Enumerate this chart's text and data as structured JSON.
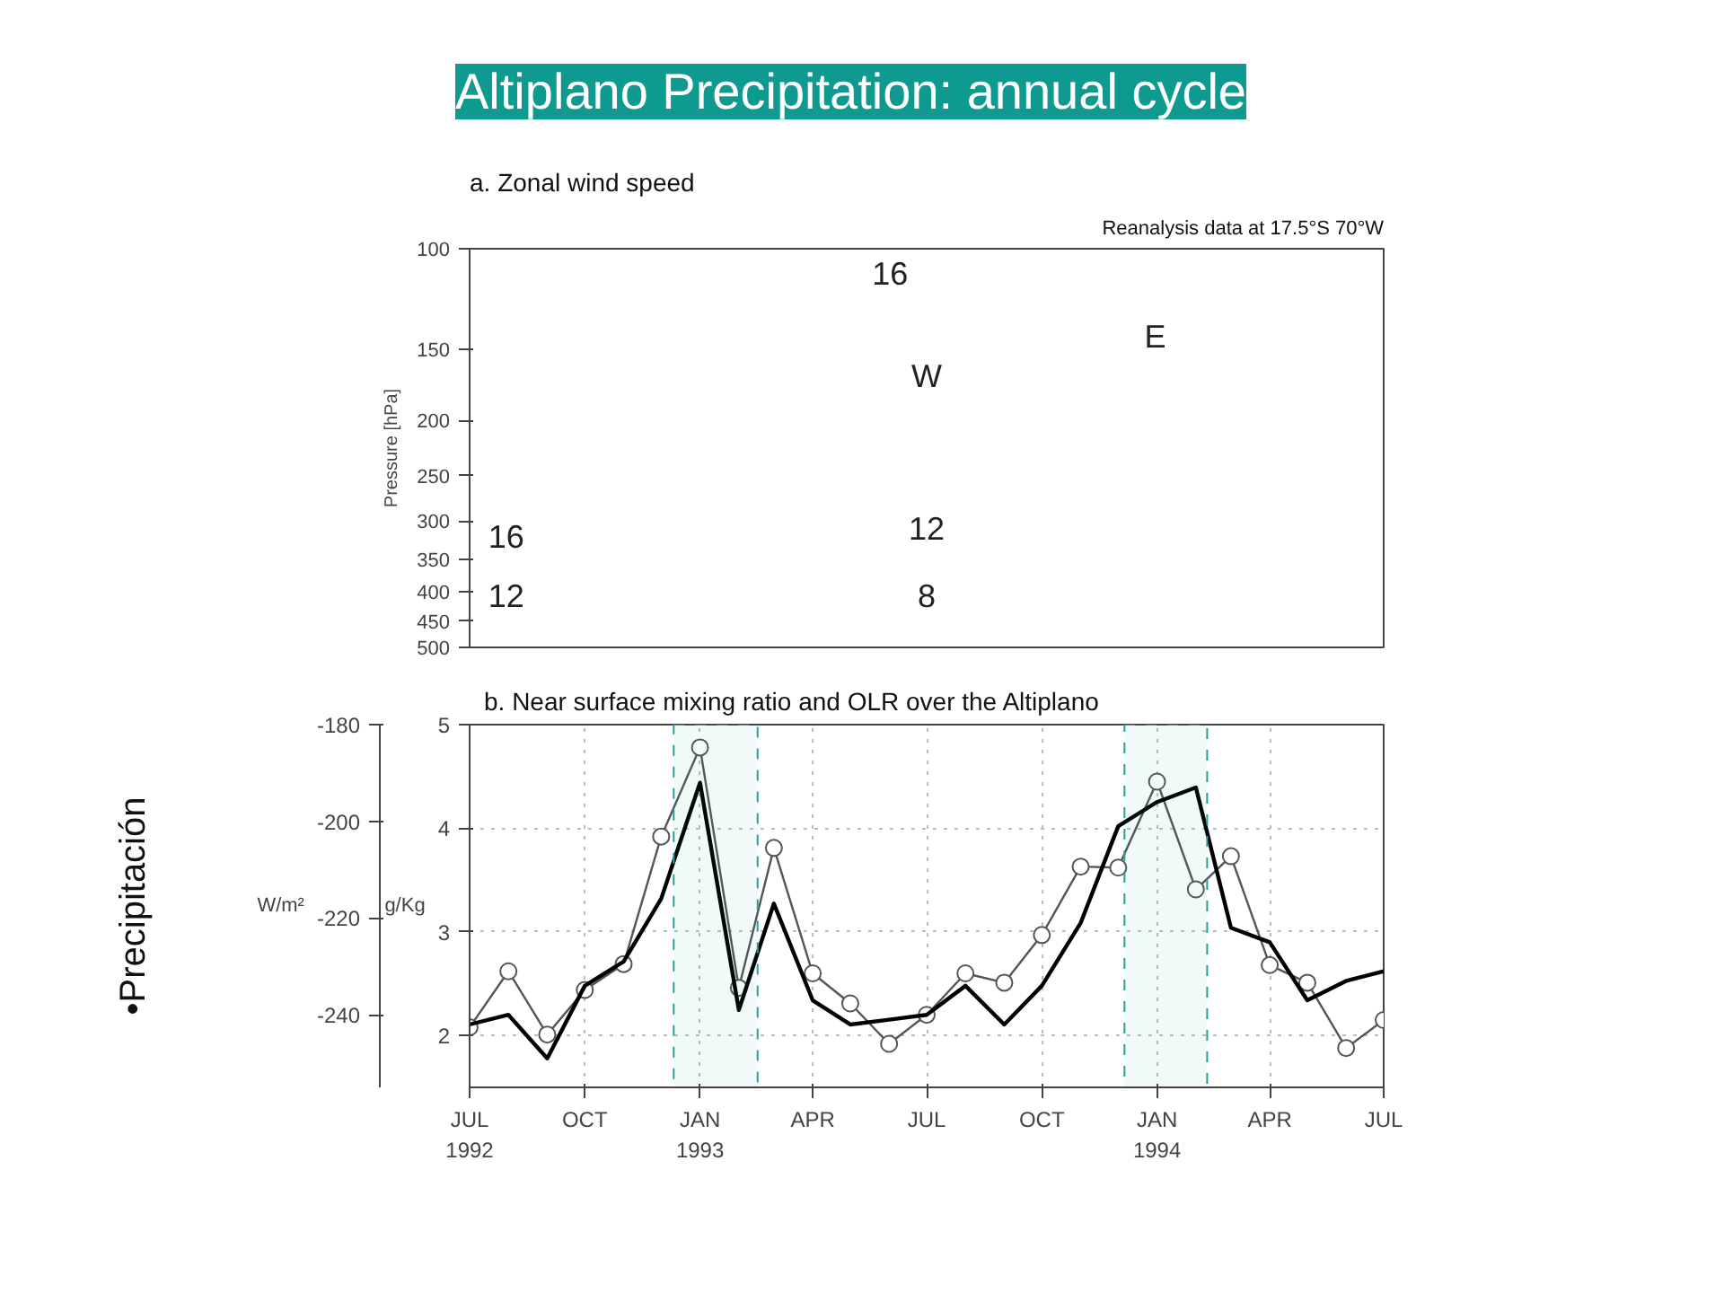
{
  "chart_data": [
    {
      "type": "line",
      "title": "Altiplano Precipitation: annual cycle",
      "subtitle": "a. Zonal wind speed",
      "ylabel": "Pressure [hPa]",
      "xlim": [
        "1992-07",
        "1994-07"
      ],
      "ylim": [
        500,
        100
      ],
      "log": "y",
      "yticks": [
        100,
        150,
        200,
        250,
        300,
        350,
        400,
        450,
        500
      ],
      "tick_labels": "y",
      "annotations": [
        "Reanalysis data at 17.5°S 70°W",
        "16",
        "W",
        "12",
        "8",
        "E",
        "16",
        "12"
      ]
    },
    {
      "type": "line",
      "title": "b. Near surface mixing ratio and OLR over the Altiplano",
      "ylabel": "g/Kg",
      "y2label": "W/m²",
      "x": [
        "1992-07",
        "1992-08",
        "1992-09",
        "1992-10",
        "1992-11",
        "1992-12",
        "1993-01",
        "1993-02",
        "1993-03",
        "1993-04",
        "1993-05",
        "1993-06",
        "1993-07",
        "1993-08",
        "1993-09",
        "1993-10",
        "1993-11",
        "1993-12",
        "1994-01",
        "1994-02",
        "1994-03",
        "1994-04",
        "1994-05",
        "1994-06",
        "1994-07"
      ],
      "series": [
        {
          "color": "#555555",
          "marker": "circle",
          "values": [
            2.08,
            2.62,
            2.01,
            2.44,
            2.69,
            3.92,
            4.78,
            2.46,
            3.81,
            2.6,
            2.31,
            1.92,
            2.2,
            2.6,
            2.51,
            2.97,
            3.63,
            3.62,
            4.45,
            3.41,
            3.73,
            2.68,
            2.51,
            1.88,
            2.15
          ]
        },
        {
          "color": "#000000",
          "axis": "y2",
          "values": [
            -242,
            -240,
            -249,
            -234,
            -229,
            -216,
            -192,
            -239,
            -217,
            -237,
            -242,
            -241,
            -240,
            -234,
            -242,
            -234,
            -221,
            -201,
            -196,
            -193,
            -222,
            -225,
            -237,
            -233,
            -231
          ]
        }
      ],
      "marker": "none",
      "xlim": [
        "1992-07",
        "1994-07"
      ],
      "xticks": [
        {
          "value": "1992-07",
          "label": "JUL\n1992"
        },
        {
          "value": "1992-10",
          "label": "OCT"
        },
        {
          "value": "1993-01",
          "label": "JAN\n1993"
        },
        {
          "value": "1993-04",
          "label": "APR"
        },
        {
          "value": "1993-07",
          "label": "JUL"
        },
        {
          "value": "1993-10",
          "label": "OCT"
        },
        {
          "value": "1994-01",
          "label": "JAN\n1994"
        },
        {
          "value": "1994-04",
          "label": "APR"
        },
        {
          "value": "1994-07",
          "label": "JUL"
        }
      ],
      "ylim": [
        1.5,
        5
      ],
      "yticks": [
        2,
        3,
        4,
        5
      ],
      "y2lim": [
        -255,
        -180
      ],
      "y2ticks": [
        -240,
        -220,
        -200,
        -180
      ],
      "grid": true,
      "bands": [
        {
          "axis": "x",
          "from": "1992-12-11",
          "to": "1993-02-16",
          "color": "#2a9d9d"
        },
        {
          "axis": "x",
          "from": "1993-12-06",
          "to": "1994-02-10",
          "color": "#2a9d9d"
        }
      ],
      "annotations": [
        "•Precipitación"
      ]
    }
  ]
}
